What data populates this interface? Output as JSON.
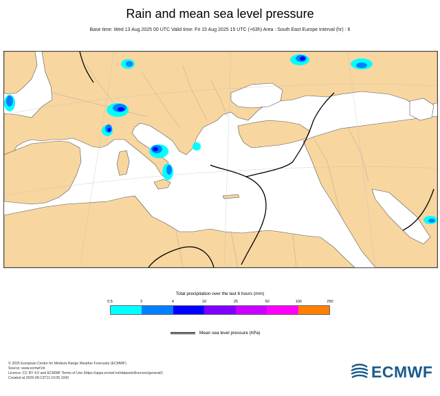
{
  "header": {
    "title": "Rain and mean sea level pressure",
    "subtitle": "Base time: Wed 13 Aug 2025 00 UTC Valid time: Fri 15 Aug 2025 15 UTC (+63h) Area : South East Europe Interval (hr) : 6"
  },
  "map": {
    "region": "South East Europe",
    "land_color": "#f8d6a0",
    "sea_color": "#ffffff"
  },
  "legend": {
    "title": "Total precipitation over the last 6 hours (mm)",
    "ticks": [
      "0.5",
      "2",
      "4",
      "10",
      "25",
      "50",
      "100",
      "250"
    ],
    "colors": [
      "#00ffff",
      "#0080ff",
      "#0000ff",
      "#8000ff",
      "#cc00ff",
      "#ff00ff",
      "#ff8000",
      "#ff0000"
    ],
    "pressure_label": "Mean sea level pressure (hPa)"
  },
  "footer": {
    "lines": [
      "© 2025 European Centre for Medium-Range Weather Forecasts (ECMWF)",
      "Source: www.ecmwf.int",
      "Licence: CC BY 4.0 and ECMWF Terms of Use (https://apps.ecmwf.int/datasets/licences/general/)",
      "Created at 2025-08-13T11:10:05.1042"
    ]
  },
  "logo": {
    "text": "ECMWF",
    "color": "#1a5b8c"
  }
}
